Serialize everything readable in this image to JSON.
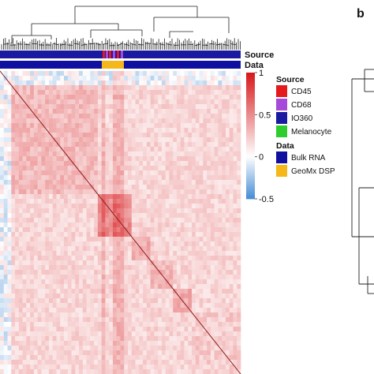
{
  "panel_label": "b",
  "chart_data": {
    "type": "heatmap",
    "title": "",
    "annotation_tracks": [
      "Source",
      "Data"
    ],
    "colorbar": {
      "min": -0.5,
      "max": 1,
      "ticks": [
        "1",
        "0.5",
        "0",
        "-0.5"
      ],
      "colors": {
        "low": "#4a8fd6",
        "mid": "#ffffff",
        "high": "#d7191c"
      }
    },
    "legend": {
      "groups": [
        {
          "title": "Source",
          "items": [
            {
              "label": "CD45",
              "color": "#e41a1c"
            },
            {
              "label": "CD68",
              "color": "#a64ad9"
            },
            {
              "label": "IO360",
              "color": "#1a1aa0"
            },
            {
              "label": "Melanocyte",
              "color": "#2ecc2e"
            }
          ]
        },
        {
          "title": "Data",
          "items": [
            {
              "label": "Bulk RNA",
              "color": "#1010a0"
            },
            {
              "label": "GeoMx DSP",
              "color": "#f5b81b"
            }
          ]
        }
      ]
    },
    "correlation_blocks": [
      {
        "from": 0.0,
        "to": 0.04,
        "value": 0.15
      },
      {
        "from": 0.04,
        "to": 0.4,
        "value": 0.3
      },
      {
        "from": 0.4,
        "to": 0.54,
        "value": 0.5
      },
      {
        "from": 0.54,
        "to": 0.62,
        "value": 0.35
      },
      {
        "from": 0.62,
        "to": 0.72,
        "value": 0.32
      },
      {
        "from": 0.72,
        "to": 0.8,
        "value": 0.36
      },
      {
        "from": 0.8,
        "to": 1.0,
        "value": 0.22
      }
    ],
    "off_diagonal_value": 0.18,
    "top_rows_value": 0.0,
    "highlight_columns": [
      0.43,
      0.47,
      0.5
    ]
  }
}
